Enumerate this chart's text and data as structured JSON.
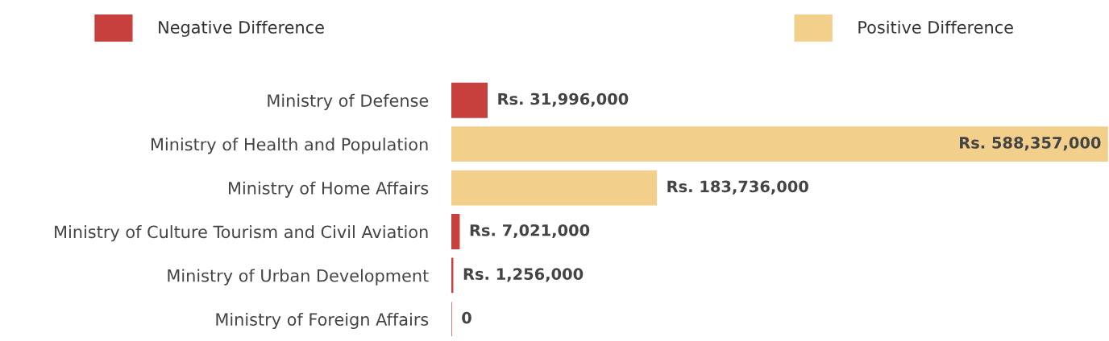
{
  "chart_data": {
    "type": "bar",
    "orientation": "horizontal",
    "categories": [
      "Ministry of Defense",
      "Ministry of Health and Population",
      "Ministry of Home Affairs",
      "Ministry of Culture Tourism and Civil Aviation",
      "Ministry of Urban Development",
      "Ministry of Foreign Affairs"
    ],
    "series": [
      {
        "name": "Negative Difference",
        "color": "#c8403d",
        "values": [
          31996000,
          null,
          null,
          7021000,
          1256000,
          0
        ],
        "value_labels": [
          "Rs. 31,996,000",
          null,
          null,
          "Rs. 7,021,000",
          "Rs. 1,256,000",
          "0"
        ]
      },
      {
        "name": "Positive Difference",
        "color": "#f2cf8a",
        "values": [
          null,
          588357000,
          183736000,
          null,
          null,
          null
        ],
        "value_labels": [
          null,
          "Rs. 588,357,000",
          "Rs. 183,736,000",
          null,
          null,
          null
        ]
      }
    ],
    "legend": "top",
    "grid": false
  }
}
